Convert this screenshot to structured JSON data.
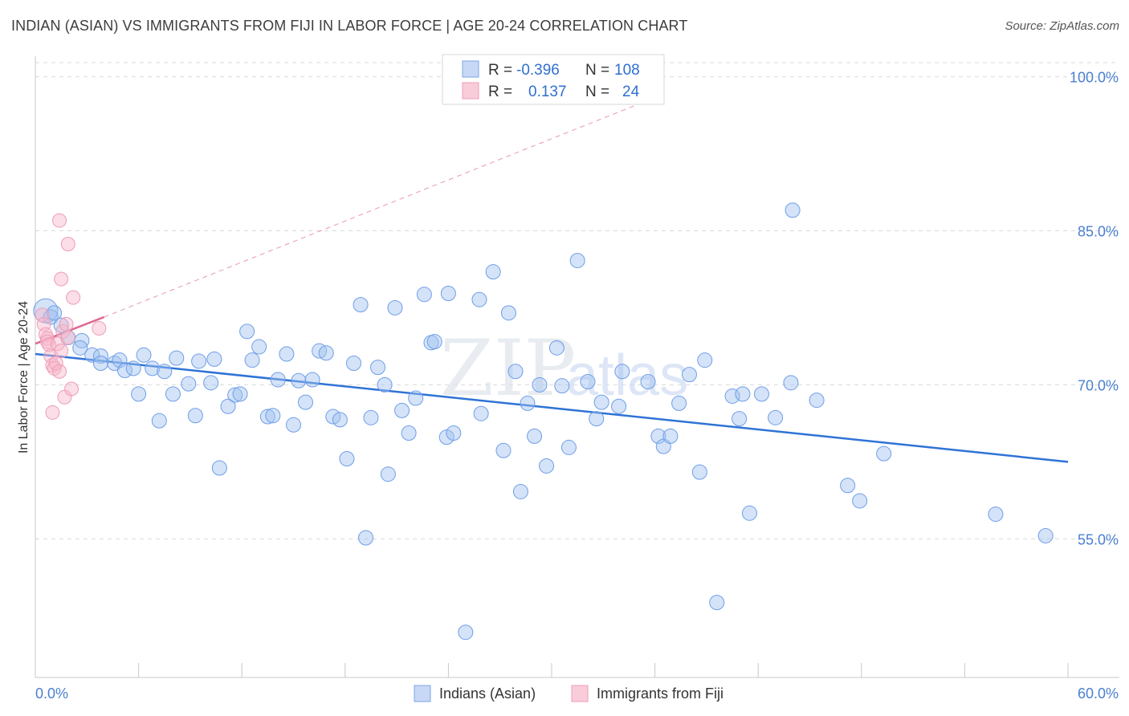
{
  "title": "INDIAN (ASIAN) VS IMMIGRANTS FROM FIJI IN LABOR FORCE | AGE 20-24 CORRELATION CHART",
  "source": "Source: ZipAtlas.com",
  "watermark": {
    "zip": "ZIP",
    "atlas": "atlas"
  },
  "colors": {
    "blue": "#6f9ee8",
    "blue_line": "#2f73d6",
    "pink": "#f2a0b8",
    "pink_line": "#e06a92",
    "grid": "#d9d9d9",
    "tick_text": "#4a7fd0"
  },
  "legend_top": {
    "rows": [
      {
        "r_label": "R =",
        "r_value": "-0.396",
        "n_label": "N =",
        "n_value": "108"
      },
      {
        "r_label": "R =",
        "r_value": "0.137",
        "n_label": "N =",
        "n_value": "24"
      }
    ]
  },
  "legend_bottom": {
    "items": [
      "Indians (Asian)",
      "Immigrants from Fiji"
    ]
  },
  "chart_data": {
    "type": "scatter",
    "title": "INDIAN (ASIAN) VS IMMIGRANTS FROM FIJI IN LABOR FORCE | AGE 20-24 CORRELATION CHART",
    "xlabel": "",
    "ylabel": "In Labor Force | Age 20-24",
    "xlim": [
      0,
      60
    ],
    "ylim": [
      41.5,
      102
    ],
    "x_tick_labels": [
      "0.0%",
      "60.0%"
    ],
    "y_ticks": [
      55,
      70,
      85,
      100
    ],
    "y_tick_labels": [
      "55.0%",
      "70.0%",
      "85.0%",
      "100.0%"
    ],
    "series": [
      {
        "name": "Indians (Asian)",
        "r": -0.396,
        "n": 108,
        "trend": {
          "x0": 0,
          "y0": 73.0,
          "x1": 60,
          "y1": 62.5
        },
        "points": [
          [
            0.6,
            77.2
          ],
          [
            0.9,
            76.6
          ],
          [
            1.1,
            77.0
          ],
          [
            1.5,
            75.8
          ],
          [
            1.9,
            74.6
          ],
          [
            2.7,
            74.3
          ],
          [
            2.6,
            73.6
          ],
          [
            3.3,
            72.9
          ],
          [
            3.8,
            72.8
          ],
          [
            3.8,
            72.1
          ],
          [
            4.6,
            72.1
          ],
          [
            4.9,
            72.4
          ],
          [
            5.2,
            71.4
          ],
          [
            5.7,
            71.6
          ],
          [
            6.3,
            72.9
          ],
          [
            6.8,
            71.6
          ],
          [
            6.0,
            69.1
          ],
          [
            7.5,
            71.3
          ],
          [
            7.2,
            66.5
          ],
          [
            8.0,
            69.1
          ],
          [
            8.2,
            72.6
          ],
          [
            8.9,
            70.1
          ],
          [
            9.3,
            67.0
          ],
          [
            9.5,
            72.3
          ],
          [
            10.2,
            70.2
          ],
          [
            10.4,
            72.5
          ],
          [
            10.7,
            61.9
          ],
          [
            11.2,
            67.9
          ],
          [
            11.6,
            69.0
          ],
          [
            11.9,
            69.1
          ],
          [
            12.3,
            75.2
          ],
          [
            12.6,
            72.4
          ],
          [
            13.0,
            73.7
          ],
          [
            13.5,
            66.9
          ],
          [
            13.8,
            67.0
          ],
          [
            14.1,
            70.5
          ],
          [
            14.6,
            73.0
          ],
          [
            15.0,
            66.1
          ],
          [
            15.3,
            70.4
          ],
          [
            15.7,
            68.3
          ],
          [
            16.1,
            70.5
          ],
          [
            16.5,
            73.3
          ],
          [
            16.9,
            73.1
          ],
          [
            17.3,
            66.9
          ],
          [
            17.7,
            66.6
          ],
          [
            18.1,
            62.8
          ],
          [
            18.5,
            72.1
          ],
          [
            18.9,
            77.8
          ],
          [
            19.2,
            55.1
          ],
          [
            19.5,
            66.8
          ],
          [
            19.9,
            71.7
          ],
          [
            20.3,
            70.0
          ],
          [
            20.5,
            61.3
          ],
          [
            20.9,
            77.5
          ],
          [
            21.3,
            67.5
          ],
          [
            21.7,
            65.3
          ],
          [
            22.1,
            68.7
          ],
          [
            22.6,
            78.8
          ],
          [
            23.0,
            74.1
          ],
          [
            23.2,
            74.2
          ],
          [
            24.0,
            78.9
          ],
          [
            23.9,
            64.9
          ],
          [
            24.3,
            65.3
          ],
          [
            25.0,
            45.9
          ],
          [
            25.8,
            78.3
          ],
          [
            25.9,
            67.2
          ],
          [
            26.6,
            81.0
          ],
          [
            27.2,
            63.6
          ],
          [
            27.5,
            77.0
          ],
          [
            27.9,
            71.3
          ],
          [
            28.2,
            59.6
          ],
          [
            28.6,
            68.2
          ],
          [
            29.0,
            65.0
          ],
          [
            29.3,
            70.0
          ],
          [
            29.7,
            62.1
          ],
          [
            30.3,
            73.6
          ],
          [
            30.6,
            69.9
          ],
          [
            31.0,
            63.9
          ],
          [
            31.5,
            82.1
          ],
          [
            32.1,
            70.3
          ],
          [
            32.6,
            66.7
          ],
          [
            32.9,
            68.3
          ],
          [
            33.9,
            67.9
          ],
          [
            34.1,
            71.3
          ],
          [
            35.6,
            70.3
          ],
          [
            36.2,
            65.0
          ],
          [
            36.5,
            64.0
          ],
          [
            36.9,
            65.0
          ],
          [
            37.4,
            68.2
          ],
          [
            38.0,
            71.0
          ],
          [
            38.6,
            61.5
          ],
          [
            38.9,
            72.4
          ],
          [
            39.6,
            48.8
          ],
          [
            40.5,
            68.9
          ],
          [
            40.9,
            66.7
          ],
          [
            41.1,
            69.1
          ],
          [
            41.5,
            57.5
          ],
          [
            42.2,
            69.1
          ],
          [
            43.0,
            66.8
          ],
          [
            43.9,
            70.2
          ],
          [
            44.0,
            87.0
          ],
          [
            45.4,
            68.5
          ],
          [
            47.2,
            60.2
          ],
          [
            47.9,
            58.7
          ],
          [
            49.3,
            63.3
          ],
          [
            55.8,
            57.4
          ],
          [
            58.7,
            55.3
          ]
        ]
      },
      {
        "name": "Immigrants from Fiji",
        "r": 0.137,
        "n": 24,
        "trend": {
          "x0": 0,
          "y0": 74.0,
          "x1": 4.0,
          "y1": 76.6
        },
        "trend_extended": {
          "x0": 4.0,
          "y0": 76.6,
          "x1": 35.0,
          "y1": 97.3
        },
        "points": [
          [
            0.4,
            76.8
          ],
          [
            0.5,
            75.9
          ],
          [
            0.6,
            74.9
          ],
          [
            0.7,
            74.5
          ],
          [
            0.7,
            74.2
          ],
          [
            0.8,
            73.9
          ],
          [
            0.9,
            72.8
          ],
          [
            1.0,
            71.9
          ],
          [
            1.1,
            71.6
          ],
          [
            1.2,
            72.1
          ],
          [
            1.0,
            67.3
          ],
          [
            1.3,
            74.0
          ],
          [
            1.4,
            71.3
          ],
          [
            1.5,
            73.3
          ],
          [
            1.6,
            75.2
          ],
          [
            1.7,
            68.8
          ],
          [
            1.8,
            75.9
          ],
          [
            1.9,
            74.6
          ],
          [
            2.1,
            69.6
          ],
          [
            2.2,
            78.5
          ],
          [
            1.4,
            86.0
          ],
          [
            1.9,
            83.7
          ],
          [
            1.5,
            80.3
          ],
          [
            3.7,
            75.5
          ]
        ]
      }
    ]
  }
}
